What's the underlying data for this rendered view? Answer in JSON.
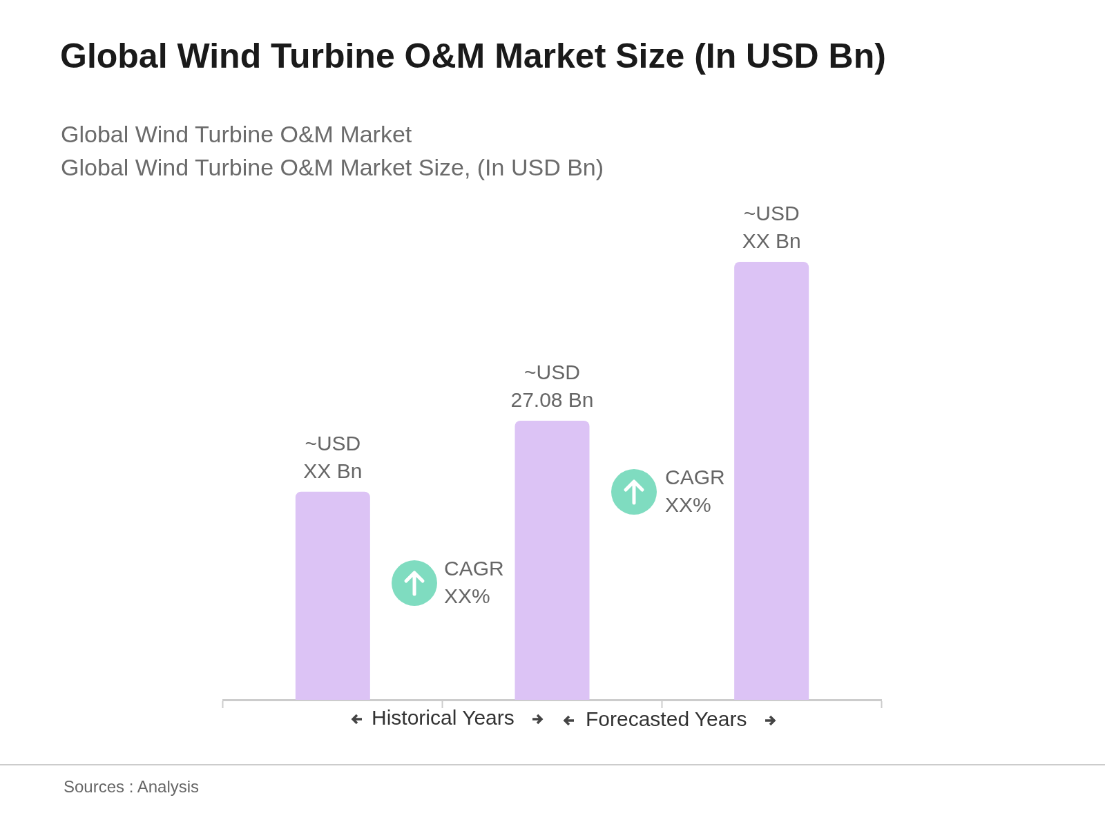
{
  "chart_data": {
    "type": "bar",
    "title": "Global Wind Turbine O&M Market Size (In USD Bn)",
    "subtitle": "Global Wind Turbine O&M Market\nGlobal Wind Turbine O&M Market Size, (In USD Bn)",
    "categories": [
      null,
      null,
      null
    ],
    "values": [
      20.2,
      27.08,
      42.5
    ],
    "ylim": [
      0,
      42.5
    ],
    "tick_labels": false,
    "value_labels": [
      "~USD XX Bn",
      "~USD 27.08 Bn",
      "~USD XX Bn"
    ],
    "color": "#dcc3f5",
    "grid": false,
    "legend": false,
    "annotations": [
      "CAGR XX%",
      "CAGR XX%",
      "Historical Years",
      "Forecasted Years",
      "Sources : Analysis"
    ]
  }
}
